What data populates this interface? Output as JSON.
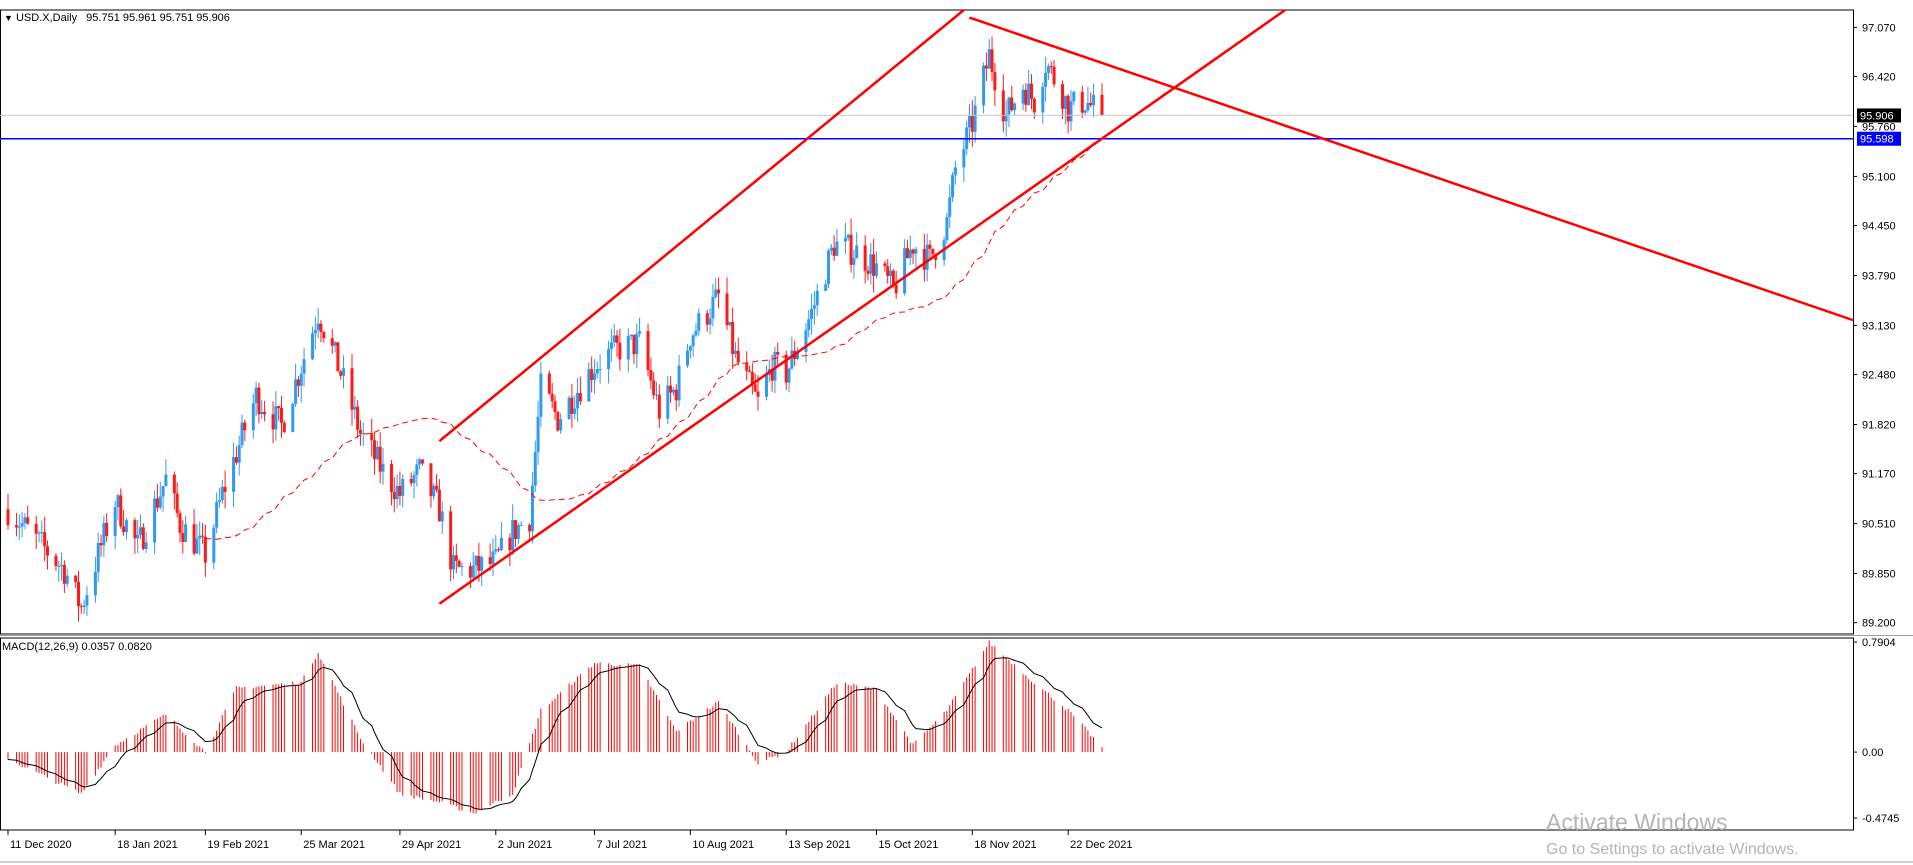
{
  "window": {
    "symbol_title": "USD.X,Daily",
    "ohlc": "95.751 95.961 95.751 95.906"
  },
  "indicator": {
    "title": "MACD(12,26,9) 0.0357 0.0820"
  },
  "watermark": {
    "line1": "Activate Windows",
    "line2": "Go to Settings to activate Windows."
  },
  "colors": {
    "up": "#2f9af0",
    "down": "#ff1a1a",
    "trendline": "#ff0000",
    "level": "#0000ff",
    "ma": "#ff0000",
    "macd_hist": "#ff0000",
    "macd_signal": "#000000",
    "grid_border": "#000000"
  },
  "chart_data": [
    {
      "type": "candlestick",
      "symbol": "USD.X",
      "timeframe": "Daily",
      "y_ticks": [
        "97.070",
        "96.420",
        "95.760",
        "95.100",
        "94.450",
        "93.790",
        "93.130",
        "92.480",
        "91.820",
        "91.170",
        "90.510",
        "89.850",
        "89.200"
      ],
      "ylim": [
        89.05,
        97.3
      ],
      "x_ticks": [
        "11 Dec 2020",
        "18 Jan 2021",
        "19 Feb 2021",
        "25 Mar 2021",
        "29 Apr 2021",
        "2 Jun 2021",
        "7 Jul 2021",
        "10 Aug 2021",
        "13 Sep 2021",
        "15 Oct 2021",
        "18 Nov 2021",
        "22 Dec 2021"
      ],
      "last_price_label": "95.906",
      "horizontal_level": {
        "value": 95.598,
        "label": "95.598"
      },
      "close_path": [
        {
          "date": "2020-12-11",
          "close": 90.7
        },
        {
          "date": "2020-12-31",
          "close": 89.9
        },
        {
          "date": "2021-01-06",
          "close": 89.4
        },
        {
          "date": "2021-01-18",
          "close": 90.8
        },
        {
          "date": "2021-01-26",
          "close": 90.2
        },
        {
          "date": "2021-02-05",
          "close": 91.1
        },
        {
          "date": "2021-02-10",
          "close": 90.5
        },
        {
          "date": "2021-02-19",
          "close": 90.1
        },
        {
          "date": "2021-02-25",
          "close": 90.9
        },
        {
          "date": "2021-03-09",
          "close": 92.2
        },
        {
          "date": "2021-03-18",
          "close": 91.8
        },
        {
          "date": "2021-03-25",
          "close": 92.6
        },
        {
          "date": "2021-03-31",
          "close": 93.3
        },
        {
          "date": "2021-04-08",
          "close": 92.5
        },
        {
          "date": "2021-04-15",
          "close": 91.7
        },
        {
          "date": "2021-04-23",
          "close": 91.2
        },
        {
          "date": "2021-04-29",
          "close": 90.9
        },
        {
          "date": "2021-05-06",
          "close": 91.2
        },
        {
          "date": "2021-05-13",
          "close": 90.7
        },
        {
          "date": "2021-05-18",
          "close": 89.9
        },
        {
          "date": "2021-05-25",
          "close": 89.9
        },
        {
          "date": "2021-06-02",
          "close": 90.0
        },
        {
          "date": "2021-06-08",
          "close": 90.4
        },
        {
          "date": "2021-06-14",
          "close": 90.6
        },
        {
          "date": "2021-06-18",
          "close": 92.3
        },
        {
          "date": "2021-06-24",
          "close": 91.9
        },
        {
          "date": "2021-07-07",
          "close": 92.6
        },
        {
          "date": "2021-07-14",
          "close": 92.8
        },
        {
          "date": "2021-07-23",
          "close": 92.9
        },
        {
          "date": "2021-07-30",
          "close": 92.0
        },
        {
          "date": "2021-08-05",
          "close": 92.3
        },
        {
          "date": "2021-08-10",
          "close": 93.0
        },
        {
          "date": "2021-08-20",
          "close": 93.5
        },
        {
          "date": "2021-08-26",
          "close": 92.7
        },
        {
          "date": "2021-09-03",
          "close": 92.1
        },
        {
          "date": "2021-09-08",
          "close": 92.6
        },
        {
          "date": "2021-09-13",
          "close": 92.5
        },
        {
          "date": "2021-09-22",
          "close": 93.3
        },
        {
          "date": "2021-09-30",
          "close": 94.2
        },
        {
          "date": "2021-10-08",
          "close": 94.1
        },
        {
          "date": "2021-10-15",
          "close": 93.9
        },
        {
          "date": "2021-10-21",
          "close": 93.6
        },
        {
          "date": "2021-10-28",
          "close": 94.2
        },
        {
          "date": "2021-11-03",
          "close": 94.0
        },
        {
          "date": "2021-11-09",
          "close": 94.5
        },
        {
          "date": "2021-11-12",
          "close": 95.2
        },
        {
          "date": "2021-11-18",
          "close": 95.8
        },
        {
          "date": "2021-11-24",
          "close": 96.7
        },
        {
          "date": "2021-11-30",
          "close": 95.9
        },
        {
          "date": "2021-12-06",
          "close": 96.3
        },
        {
          "date": "2021-12-10",
          "close": 96.1
        },
        {
          "date": "2021-12-14",
          "close": 96.6
        },
        {
          "date": "2021-12-20",
          "close": 96.2
        },
        {
          "date": "2021-12-22",
          "close": 96.0
        },
        {
          "date": "2021-12-28",
          "close": 96.1
        },
        {
          "date": "2022-01-03",
          "close": 95.906
        }
      ],
      "trendlines": [
        {
          "name": "channel_upper",
          "from": {
            "date": "2021-05-13",
            "price": 91.6
          },
          "to": {
            "date": "2021-11-15",
            "price": 97.3
          }
        },
        {
          "name": "channel_lower",
          "from": {
            "date": "2021-05-13",
            "price": 89.45
          },
          "to": {
            "date": "2022-01-03",
            "price": 95.6
          }
        },
        {
          "name": "resistance_down",
          "from": {
            "date": "2021-11-17",
            "price": 97.2
          },
          "to": {
            "date": "2022-01-03",
            "price": 96.6
          }
        }
      ]
    },
    {
      "type": "macd",
      "params": "12,26,9",
      "macd": 0.0357,
      "signal": 0.082,
      "y_ticks": [
        "0.7904",
        "0.00",
        "-0.4745"
      ],
      "ylim": [
        -0.56,
        0.82
      ],
      "histogram_path": [
        {
          "date": "2020-12-11",
          "value": -0.05
        },
        {
          "date": "2021-01-06",
          "value": -0.3
        },
        {
          "date": "2021-01-18",
          "value": 0.05
        },
        {
          "date": "2021-02-05",
          "value": 0.27
        },
        {
          "date": "2021-02-19",
          "value": 0.0
        },
        {
          "date": "2021-03-02",
          "value": 0.46
        },
        {
          "date": "2021-03-25",
          "value": 0.5
        },
        {
          "date": "2021-03-31",
          "value": 0.72
        },
        {
          "date": "2021-04-15",
          "value": 0.1
        },
        {
          "date": "2021-04-29",
          "value": -0.3
        },
        {
          "date": "2021-05-13",
          "value": -0.36
        },
        {
          "date": "2021-05-25",
          "value": -0.44
        },
        {
          "date": "2021-06-08",
          "value": -0.3
        },
        {
          "date": "2021-06-18",
          "value": 0.3
        },
        {
          "date": "2021-07-07",
          "value": 0.64
        },
        {
          "date": "2021-07-23",
          "value": 0.62
        },
        {
          "date": "2021-08-05",
          "value": 0.15
        },
        {
          "date": "2021-08-20",
          "value": 0.36
        },
        {
          "date": "2021-09-03",
          "value": -0.08
        },
        {
          "date": "2021-09-13",
          "value": 0.0
        },
        {
          "date": "2021-10-01",
          "value": 0.5
        },
        {
          "date": "2021-10-15",
          "value": 0.45
        },
        {
          "date": "2021-10-28",
          "value": 0.05
        },
        {
          "date": "2021-11-09",
          "value": 0.3
        },
        {
          "date": "2021-11-24",
          "value": 0.79
        },
        {
          "date": "2021-12-10",
          "value": 0.5
        },
        {
          "date": "2021-12-22",
          "value": 0.3
        },
        {
          "date": "2022-01-03",
          "value": 0.0357
        }
      ]
    }
  ]
}
